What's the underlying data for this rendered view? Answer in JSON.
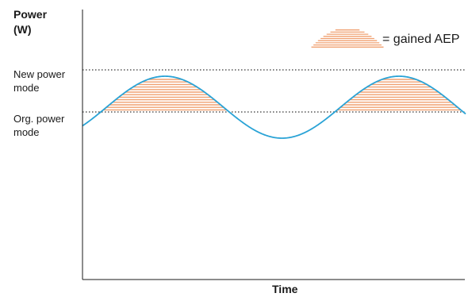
{
  "diagram": {
    "y_axis_title_line1": "Power",
    "y_axis_title_line2": "(W)",
    "x_axis_title": "Time",
    "new_level_line1": "New power",
    "new_level_line2": "mode",
    "org_level_line1": "Org. power",
    "org_level_line2": "mode",
    "legend_text": "= gained AEP",
    "colors": {
      "curve": "#2aa3d6",
      "gain_hatch": "#f0a070",
      "axis": "#1a1a1a",
      "reference_line": "#333333"
    }
  }
}
